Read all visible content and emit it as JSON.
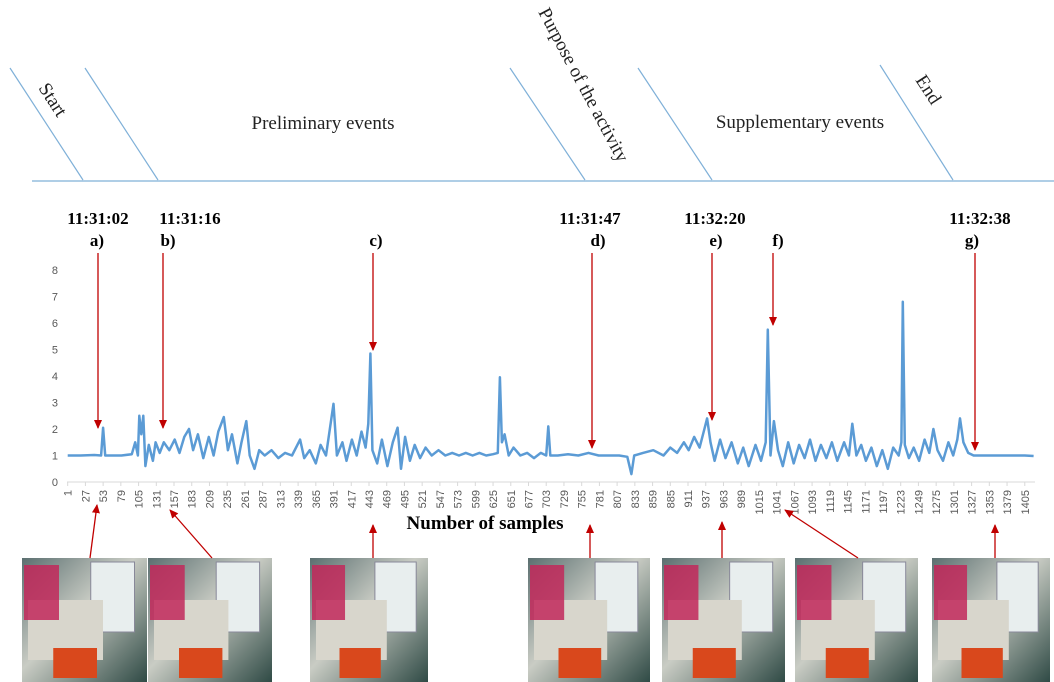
{
  "phases": [
    "Start",
    "Preliminary events",
    "Purpose of the activity",
    "Supplementary events",
    "End"
  ],
  "annotations": [
    {
      "label": "a)",
      "time": "11:31:02"
    },
    {
      "label": "b)",
      "time": "11:31:16"
    },
    {
      "label": "c)"
    },
    {
      "label": "d)",
      "time": "11:31:47"
    },
    {
      "label": "e)",
      "time": "11:32:20"
    },
    {
      "label": "f)"
    },
    {
      "label": "g)",
      "time": "11:32:38"
    }
  ],
  "chart_data": {
    "type": "line",
    "x_label": "Number of samples",
    "color": "#5b9bd5",
    "grid": false,
    "xlim": [
      0,
      1420
    ],
    "ylim": [
      0,
      8
    ],
    "yticks": [
      0,
      1,
      2,
      3,
      4,
      5,
      6,
      7,
      8
    ],
    "xticks": [
      1,
      27,
      53,
      79,
      105,
      131,
      157,
      183,
      209,
      235,
      261,
      287,
      313,
      339,
      365,
      391,
      417,
      443,
      469,
      495,
      521,
      547,
      573,
      599,
      625,
      651,
      677,
      703,
      729,
      755,
      781,
      807,
      833,
      859,
      885,
      911,
      937,
      963,
      989,
      1015,
      1041,
      1067,
      1093,
      1119,
      1145,
      1171,
      1197,
      1223,
      1249,
      1275,
      1301,
      1327,
      1353,
      1379,
      1405
    ],
    "x": [
      1,
      20,
      40,
      50,
      53,
      56,
      80,
      95,
      100,
      104,
      106,
      109,
      112,
      115,
      120,
      126,
      130,
      136,
      142,
      150,
      158,
      165,
      172,
      179,
      185,
      192,
      200,
      208,
      215,
      222,
      230,
      236,
      242,
      250,
      256,
      263,
      268,
      275,
      282,
      290,
      300,
      310,
      320,
      330,
      342,
      348,
      356,
      365,
      372,
      380,
      391,
      396,
      404,
      410,
      418,
      425,
      432,
      438,
      442,
      445,
      448,
      455,
      462,
      470,
      478,
      485,
      490,
      496,
      503,
      510,
      518,
      526,
      535,
      545,
      555,
      565,
      575,
      585,
      595,
      605,
      615,
      625,
      632,
      635,
      638,
      642,
      648,
      655,
      665,
      675,
      685,
      695,
      703,
      706,
      709,
      720,
      735,
      750,
      765,
      780,
      795,
      810,
      822,
      828,
      832,
      845,
      860,
      875,
      885,
      895,
      905,
      912,
      920,
      928,
      935,
      939,
      944,
      950,
      958,
      966,
      975,
      984,
      992,
      1000,
      1010,
      1018,
      1025,
      1028,
      1032,
      1037,
      1043,
      1050,
      1058,
      1066,
      1074,
      1082,
      1090,
      1098,
      1106,
      1114,
      1122,
      1130,
      1140,
      1147,
      1152,
      1158,
      1165,
      1172,
      1180,
      1188,
      1196,
      1204,
      1212,
      1220,
      1224,
      1226,
      1229,
      1235,
      1242,
      1250,
      1258,
      1265,
      1271,
      1277,
      1285,
      1293,
      1300,
      1306,
      1310,
      1315,
      1322,
      1330,
      1345,
      1360,
      1375,
      1390,
      1405,
      1418
    ],
    "values": [
      1.0,
      1.0,
      1.02,
      1.0,
      2.05,
      1.0,
      1.0,
      1.05,
      1.5,
      1.0,
      2.5,
      1.8,
      2.5,
      0.6,
      1.4,
      0.8,
      1.5,
      1.1,
      1.5,
      1.2,
      1.6,
      1.1,
      1.7,
      2.0,
      1.2,
      1.8,
      0.9,
      1.7,
      1.0,
      1.9,
      2.45,
      1.2,
      1.8,
      0.7,
      1.5,
      2.3,
      1.0,
      0.5,
      1.2,
      1.0,
      1.2,
      0.9,
      1.1,
      1.0,
      1.6,
      0.9,
      1.2,
      0.7,
      1.4,
      1.0,
      2.95,
      1.0,
      1.5,
      0.8,
      1.6,
      1.0,
      1.9,
      1.3,
      2.2,
      4.85,
      1.2,
      0.7,
      1.6,
      0.6,
      1.5,
      2.05,
      0.5,
      1.7,
      0.8,
      1.4,
      0.9,
      1.3,
      1.0,
      1.2,
      1.0,
      1.1,
      1.0,
      1.1,
      1.0,
      1.1,
      1.0,
      1.05,
      1.1,
      3.95,
      1.5,
      1.8,
      1.0,
      1.3,
      1.0,
      1.1,
      0.9,
      1.1,
      1.0,
      2.1,
      1.0,
      1.0,
      1.05,
      1.0,
      1.1,
      1.0,
      1.0,
      1.0,
      0.95,
      0.3,
      1.0,
      1.1,
      1.2,
      1.0,
      1.3,
      1.1,
      1.5,
      1.2,
      1.7,
      1.3,
      2.0,
      2.4,
      1.5,
      0.8,
      1.6,
      0.9,
      1.5,
      0.7,
      1.3,
      0.6,
      1.4,
      0.8,
      1.5,
      5.75,
      1.0,
      2.3,
      1.2,
      0.6,
      1.5,
      0.7,
      1.4,
      0.9,
      1.6,
      0.8,
      1.4,
      0.9,
      1.5,
      0.8,
      1.5,
      1.0,
      2.2,
      1.0,
      1.4,
      0.8,
      1.3,
      0.6,
      1.2,
      0.5,
      1.3,
      1.0,
      1.5,
      6.8,
      1.4,
      0.9,
      1.3,
      0.8,
      1.6,
      1.1,
      2.0,
      1.2,
      0.8,
      1.5,
      1.0,
      1.6,
      2.4,
      1.5,
      1.1,
      1.0,
      1.0,
      1.0,
      1.0,
      1.0,
      1.0,
      0.98
    ]
  }
}
